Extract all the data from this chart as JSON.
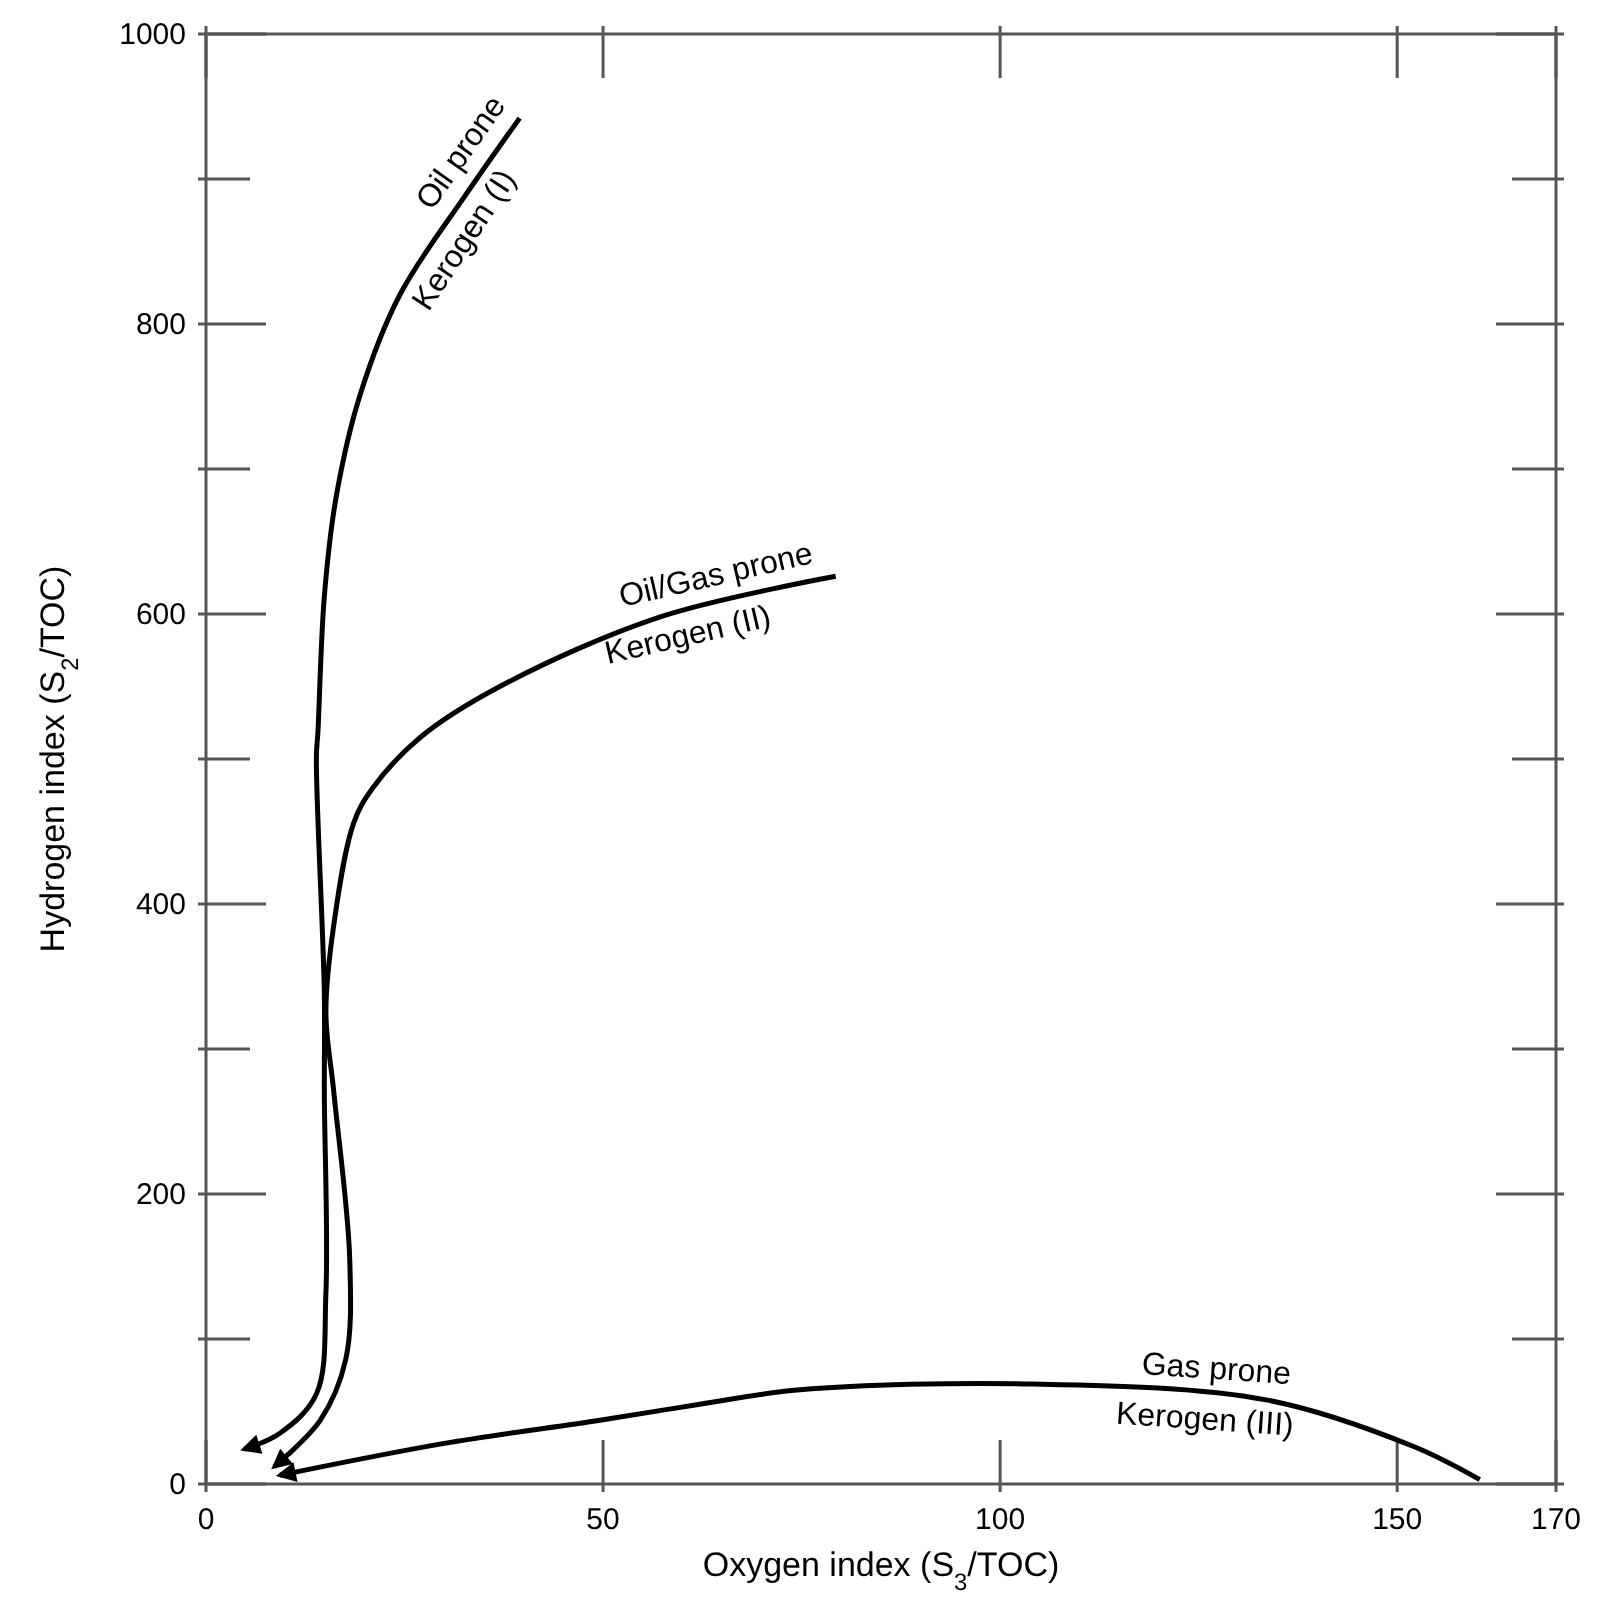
{
  "chart_data": {
    "type": "line",
    "xlabel": "Oxygen index (S$_{3}$/TOC)",
    "ylabel": "Hydrogen index (S$_{2}$/TOC)",
    "xlim": [
      0,
      170
    ],
    "xticks": [
      0,
      50,
      100,
      150,
      170
    ],
    "ylim": [
      0,
      1000
    ],
    "yticks": [
      0,
      {
        "value": 100,
        "label": null
      },
      200,
      {
        "value": 300,
        "label": null
      },
      400,
      {
        "value": 500,
        "label": null
      },
      600,
      {
        "value": 700,
        "label": null
      },
      800,
      {
        "value": 900,
        "label": null
      },
      1000
    ],
    "grid": false,
    "marker": "none",
    "line_style": "solid",
    "series": [
      {
        "color": "#000000",
        "x": [
          39.5,
          32.7,
          24.4,
          19.4,
          16.4,
          14.9,
          14.1,
          13.9,
          14.9,
          14.9,
          15.1,
          13.9,
          9.3,
          4.8
        ],
        "values": [
          942,
          889,
          820,
          751,
          681,
          612,
          519,
          501,
          339,
          270,
          132,
          62,
          35,
          24
        ]
      },
      {
        "color": "#000000",
        "x": [
          79.3,
          57.2,
          37,
          27,
          21,
          18.6,
          16.1,
          15.1,
          16.1,
          18.1,
          17.6,
          14.4,
          8.6
        ],
        "values": [
          626,
          598,
          550,
          515,
          480,
          456,
          386,
          325,
          270,
          155,
          86,
          44,
          12
        ]
      },
      {
        "color": "#000000",
        "x": [
          160.4,
          152,
          133.5,
          104,
          74.8,
          62.2,
          49.6,
          30,
          9.3
        ],
        "values": [
          3,
          26,
          58,
          69,
          65,
          55,
          44,
          28,
          6
        ]
      }
    ],
    "annotations": [
      {
        "text": "Oil prone",
        "x": 35,
        "y": 907
      },
      {
        "text": "Kerogen (I)",
        "x": 30,
        "y": 867
      },
      {
        "text": "Oil/Gas prone",
        "x": 65,
        "y": 608
      },
      {
        "text": "Kerogen (II)",
        "x": 60,
        "y": 601.5
      },
      {
        "text": "Gas prone",
        "x": 127,
        "y": 60
      },
      {
        "text": "Kerogen (III)",
        "x": 126,
        "y": 61
      }
    ]
  }
}
